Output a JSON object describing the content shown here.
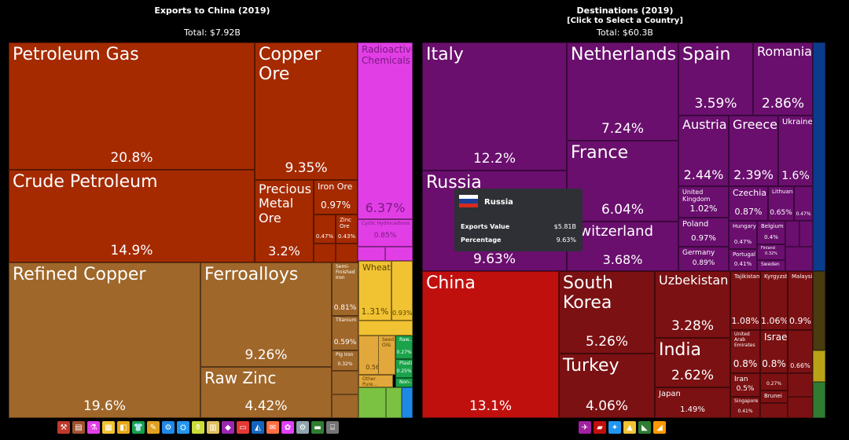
{
  "left_panel": {
    "title": "Exports to China (2019)",
    "total": "Total: $7.92B"
  },
  "right_panel": {
    "title": "Destinations (2019)",
    "subtitle": "[Click to Select a Country]",
    "total": "Total: $60.3B"
  },
  "tooltip": {
    "country": "Russia",
    "rows": [
      {
        "label": "Exports Value",
        "value": "$5.81B"
      },
      {
        "label": "Percentage",
        "value": "9.63%"
      }
    ],
    "flag_colors": [
      "#ffffff",
      "#1c3f94",
      "#d52b1e"
    ]
  },
  "colors": {
    "mineral": "#a52a00",
    "metal": "#a0672a",
    "chemical": "#e23ee6",
    "vegetable": "#f1c232",
    "asia": "#7b1113",
    "europe": "#6a0f6e",
    "china": "#c0100e",
    "america": "#0b3c8c"
  },
  "chart_data": [
    {
      "type": "treemap",
      "title": "Exports to China (2019)",
      "total": "$7.92B",
      "items": [
        {
          "name": "Petroleum Gas",
          "value": 20.8,
          "label": "20.8%"
        },
        {
          "name": "Crude Petroleum",
          "value": 14.9,
          "label": "14.9%"
        },
        {
          "name": "Copper Ore",
          "value": 9.35,
          "label": "9.35%"
        },
        {
          "name": "Precious Metal Ore",
          "value": 3.2,
          "label": "3.2%"
        },
        {
          "name": "Iron Ore",
          "value": 0.97,
          "label": "0.97%"
        },
        {
          "name": "",
          "value": 0.47,
          "label": "0.47%"
        },
        {
          "name": "Zinc Ore",
          "value": 0.43,
          "label": "0.43%"
        },
        {
          "name": "Radioactive Chemicals",
          "value": 6.37,
          "label": "6.37%"
        },
        {
          "name": "Cyclic Hydrocarbons",
          "value": 0.85,
          "label": "0.85%"
        },
        {
          "name": "Refined Copper",
          "value": 19.6,
          "label": "19.6%"
        },
        {
          "name": "Ferroalloys",
          "value": 9.26,
          "label": "9.26%"
        },
        {
          "name": "Raw Zinc",
          "value": 4.42,
          "label": "4.42%"
        },
        {
          "name": "Semi-Finished Iron",
          "value": 0.81,
          "label": "0.81%"
        },
        {
          "name": "Titanium",
          "value": 0.59,
          "label": "0.59%"
        },
        {
          "name": "Pig Iron",
          "value": 0.32,
          "label": "0.32%"
        },
        {
          "name": "Wheat",
          "value": 1.31,
          "label": "1.31%"
        },
        {
          "name": "",
          "value": 0.93,
          "label": "0.93%"
        },
        {
          "name": "",
          "value": 0.56,
          "label": "0.56%"
        },
        {
          "name": "Other Pure...",
          "value": null,
          "label": ""
        },
        {
          "name": "Raw...",
          "value": 0.27,
          "label": "0.27%"
        },
        {
          "name": "Plastic...",
          "value": 0.25,
          "label": "0.25%"
        },
        {
          "name": "Seed Oils",
          "value": null,
          "label": ""
        },
        {
          "name": "Non-...",
          "value": null,
          "label": ""
        }
      ]
    },
    {
      "type": "treemap",
      "title": "Destinations (2019)",
      "total": "$60.3B",
      "items": [
        {
          "name": "Italy",
          "value": 12.2,
          "label": "12.2%"
        },
        {
          "name": "Netherlands",
          "value": 7.24,
          "label": "7.24%"
        },
        {
          "name": "Spain",
          "value": 3.59,
          "label": "3.59%"
        },
        {
          "name": "Romania",
          "value": 2.86,
          "label": "2.86%"
        },
        {
          "name": "Austria",
          "value": 2.44,
          "label": "2.44%"
        },
        {
          "name": "Greece",
          "value": 2.39,
          "label": "2.39%"
        },
        {
          "name": "Ukraine",
          "value": 1.6,
          "label": "1.6%"
        },
        {
          "name": "France",
          "value": 6.04,
          "label": "6.04%"
        },
        {
          "name": "Russia",
          "value": 9.63,
          "label": "9.63%"
        },
        {
          "name": "Switzerland",
          "value": 3.68,
          "label": "3.68%"
        },
        {
          "name": "United Kingdom",
          "value": 1.02,
          "label": "1.02%"
        },
        {
          "name": "Czechia",
          "value": 0.87,
          "label": "0.87%"
        },
        {
          "name": "Lithuania",
          "value": 0.65,
          "label": "0.65%"
        },
        {
          "name": "",
          "value": 0.47,
          "label": "0.47%"
        },
        {
          "name": "Poland",
          "value": 0.97,
          "label": "0.97%"
        },
        {
          "name": "Hungary",
          "value": 0.47,
          "label": "0.47%"
        },
        {
          "name": "Belgium",
          "value": 0.4,
          "label": "0.4%"
        },
        {
          "name": "Finland",
          "value": 0.32,
          "label": "0.32%"
        },
        {
          "name": "Germany",
          "value": 0.89,
          "label": "0.89%"
        },
        {
          "name": "Portugal",
          "value": 0.41,
          "label": "0.41%"
        },
        {
          "name": "Sweden",
          "value": null,
          "label": ""
        },
        {
          "name": "China",
          "value": 13.1,
          "label": "13.1%"
        },
        {
          "name": "South Korea",
          "value": 5.26,
          "label": "5.26%"
        },
        {
          "name": "Turkey",
          "value": 4.06,
          "label": "4.06%"
        },
        {
          "name": "Uzbekistan",
          "value": 3.28,
          "label": "3.28%"
        },
        {
          "name": "India",
          "value": 2.62,
          "label": "2.62%"
        },
        {
          "name": "Japan",
          "value": 1.49,
          "label": "1.49%"
        },
        {
          "name": "Tajikistan",
          "value": 1.08,
          "label": "1.08%"
        },
        {
          "name": "Kyrgyzstan",
          "value": 1.06,
          "label": "1.06%"
        },
        {
          "name": "Malaysia",
          "value": 0.9,
          "label": "0.9%"
        },
        {
          "name": "United Arab Emirates",
          "value": 0.8,
          "label": "0.8%"
        },
        {
          "name": "Israel",
          "value": 0.8,
          "label": "0.8%"
        },
        {
          "name": "",
          "value": 0.66,
          "label": "0.66%"
        },
        {
          "name": "Iran",
          "value": 0.5,
          "label": "0.5%"
        },
        {
          "name": "",
          "value": 0.27,
          "label": "0.27%"
        },
        {
          "name": "Brunei",
          "value": null,
          "label": ""
        },
        {
          "name": "Singapore",
          "value": 0.41,
          "label": "0.41%"
        }
      ]
    }
  ],
  "legend_left": [
    {
      "icon": "animal-hides-icon",
      "color": "#c0392b",
      "glyph": "⚒"
    },
    {
      "icon": "animal-products-icon",
      "color": "#a0522d",
      "glyph": "▤"
    },
    {
      "icon": "chemical-products-icon",
      "color": "#e23ee6",
      "glyph": "⚗"
    },
    {
      "icon": "foodstuffs-icon",
      "color": "#f1c232",
      "glyph": "▦"
    },
    {
      "icon": "footwear-icon",
      "color": "#e6a817",
      "glyph": "◧"
    },
    {
      "icon": "textiles-icon",
      "color": "#16a04a",
      "glyph": "👕"
    },
    {
      "icon": "instruments-icon",
      "color": "#e0a020",
      "glyph": "✎"
    },
    {
      "icon": "machines-icon",
      "color": "#1e88e5",
      "glyph": "⚙"
    },
    {
      "icon": "metals-icon",
      "color": "#2196f3",
      "glyph": "⛭"
    },
    {
      "icon": "mineral-products-icon",
      "color": "#cddc39",
      "glyph": "⚱"
    },
    {
      "icon": "miscellaneous-icon",
      "color": "#e0c060",
      "glyph": "▥"
    },
    {
      "icon": "precious-metals-icon",
      "color": "#9c27b0",
      "glyph": "◆"
    },
    {
      "icon": "plastics-icon",
      "color": "#e53935",
      "glyph": "▭"
    },
    {
      "icon": "stone-glass-icon",
      "color": "#1565c0",
      "glyph": "◭"
    },
    {
      "icon": "paper-goods-icon",
      "color": "#ff7043",
      "glyph": "✉"
    },
    {
      "icon": "vegetable-products-icon",
      "color": "#e040fb",
      "glyph": "✿"
    },
    {
      "icon": "weapons-icon",
      "color": "#90a4ae",
      "glyph": "⚙"
    },
    {
      "icon": "transportation-icon",
      "color": "#2e7d32",
      "glyph": "▬"
    },
    {
      "icon": "wood-products-icon",
      "color": "#757575",
      "glyph": "⌸"
    }
  ],
  "legend_right": [
    {
      "icon": "europe-icon",
      "color": "#a020a0",
      "glyph": "✈"
    },
    {
      "icon": "asia-icon",
      "color": "#c0100e",
      "glyph": "▰"
    },
    {
      "icon": "north-america-icon",
      "color": "#2196f3",
      "glyph": "✦"
    },
    {
      "icon": "africa-icon",
      "color": "#f1c232",
      "glyph": "▲"
    },
    {
      "icon": "south-america-icon",
      "color": "#2e7d32",
      "glyph": "◣"
    },
    {
      "icon": "oceania-icon",
      "color": "#ff9800",
      "glyph": "◢"
    }
  ]
}
